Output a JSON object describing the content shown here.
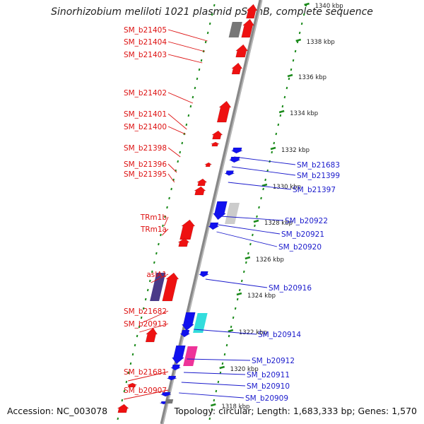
{
  "title": "Sinorhizobium meliloti 1021 plasmid pSymB, complete sequence",
  "accession": "Accession: NC_003078",
  "topology": "Topology: circular; Length: 1,683,333 bp; Genes: 1,570",
  "colors": {
    "backbone": "#888888",
    "forward_gene": "#ee1111",
    "reverse_gene": "#1111ee",
    "left_label": "#dd1111",
    "right_label": "#1a1acc",
    "tick": "#1a8a1a",
    "grey_feature": "#777777",
    "light_grey_feature": "#cccccc",
    "cyan_feature": "#33dddd",
    "magenta_feature": "#ee3399",
    "purple_feature": "#4a3a88"
  },
  "tick_labels": [
    "1340 kbp",
    "1338 kbp",
    "1336 kbp",
    "1334 kbp",
    "1332 kbp",
    "1330 kbp",
    "1328 kbp",
    "1326 kbp",
    "1324 kbp",
    "1322 kbp",
    "1320 kbp",
    "1318 kbp"
  ],
  "left_labels": [
    "SM_b21405",
    "SM_b21404",
    "SM_b21403",
    "SM_b21402",
    "SM_b21401",
    "SM_b21400",
    "SM_b21398",
    "SM_b21396",
    "SM_b21395",
    "TRm1b",
    "TRm1a",
    "aslA1",
    "SM_b21682",
    "SM_b20913",
    "SM_b21681",
    "SM_b20907"
  ],
  "right_labels": [
    "SM_b21683",
    "SM_b21399",
    "SM_b21397",
    "SM_b20922",
    "SM_b20921",
    "SM_b20920",
    "SM_b20916",
    "SM_b20914",
    "SM_b20912",
    "SM_b20911",
    "SM_b20910",
    "SM_b20909"
  ]
}
